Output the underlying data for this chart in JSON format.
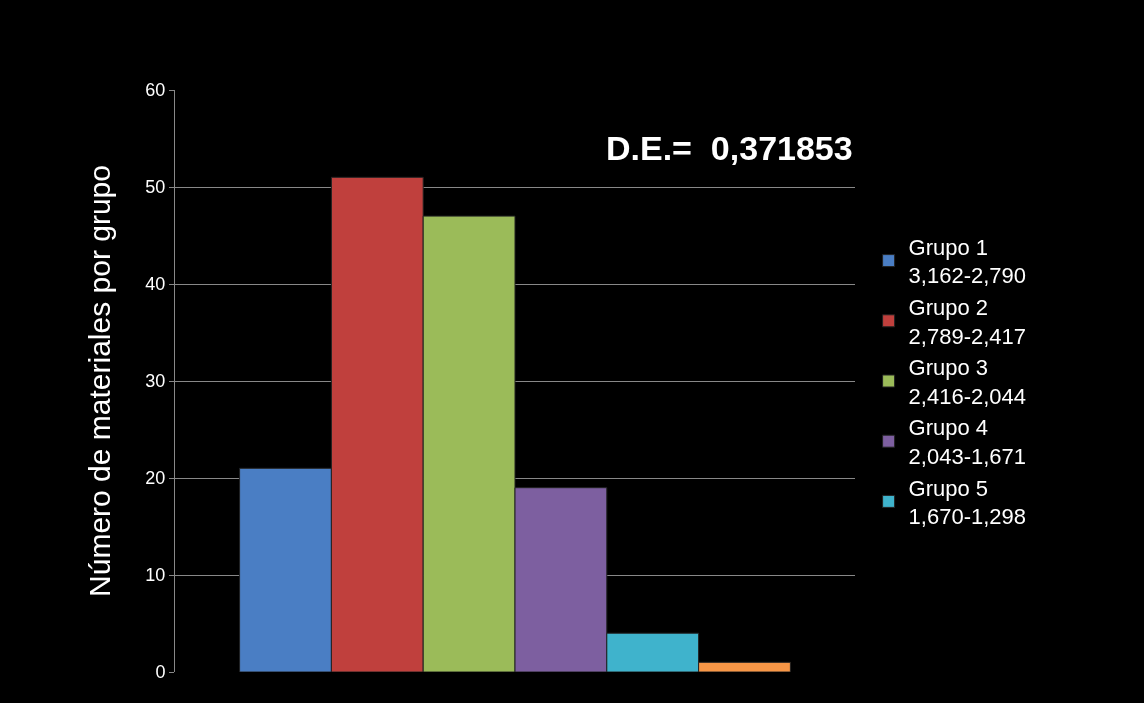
{
  "chart_data": {
    "type": "bar",
    "ylabel": "Número de materiales por grupo",
    "categories": [
      null
    ],
    "series": [
      {
        "name": "Grupo 1\n3,162-2,790",
        "color": "#4a7ec4",
        "values": [
          21
        ]
      },
      {
        "name": "Grupo 2\n2,789-2,417",
        "color": "#c0403d",
        "values": [
          51
        ]
      },
      {
        "name": "Grupo 3\n2,416-2,044",
        "color": "#9bbb59",
        "values": [
          47
        ]
      },
      {
        "name": "Grupo 4\n2,043-1,671",
        "color": "#7d5fa0",
        "values": [
          19
        ]
      },
      {
        "name": "Grupo 5\n1,670-1,298",
        "color": "#3fb3cc",
        "values": [
          4
        ]
      },
      {
        "color": "#f79646",
        "values": [
          1
        ]
      }
    ],
    "ylim": [
      0,
      60
    ],
    "yticks": [
      0,
      10,
      20,
      30,
      40,
      50,
      60
    ],
    "grid": "y",
    "legend": "right",
    "annotations": [
      "D.E.=  0,371853"
    ]
  }
}
